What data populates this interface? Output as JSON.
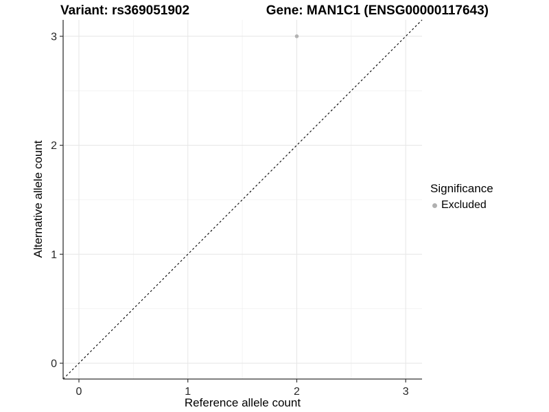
{
  "titles": {
    "variant": "Variant: rs369051902",
    "gene": "Gene: MAN1C1 (ENSG00000117643)"
  },
  "chart_data": {
    "type": "scatter",
    "xlabel": "Reference allele count",
    "ylabel": "Alternative allele count",
    "xlim": [
      -0.145,
      3.15
    ],
    "ylim": [
      -0.145,
      3.15
    ],
    "x_ticks": [
      0,
      1,
      2,
      3
    ],
    "y_ticks": [
      0,
      1,
      2,
      3
    ],
    "x_minor_ticks": [
      0.5,
      1.5,
      2.5
    ],
    "y_minor_ticks": [
      0.5,
      1.5,
      2.5
    ],
    "grid": true,
    "identity_line": {
      "style": "dashed",
      "color": "#000000",
      "slope": 1,
      "intercept": 0
    },
    "series": [
      {
        "name": "Excluded",
        "color": "#b3b3b3",
        "points": [
          {
            "x": 2,
            "y": 3
          }
        ]
      }
    ],
    "legend": {
      "title": "Significance",
      "position": "right",
      "items": [
        {
          "label": "Excluded",
          "color": "#b0b0b0"
        }
      ]
    }
  },
  "colors": {
    "background": "#ffffff",
    "grid_major": "#e6e6e6",
    "grid_minor": "#f0f0f0",
    "axis_line": "#333333",
    "tick_text": "#262626",
    "point": "#b3b3b3"
  }
}
